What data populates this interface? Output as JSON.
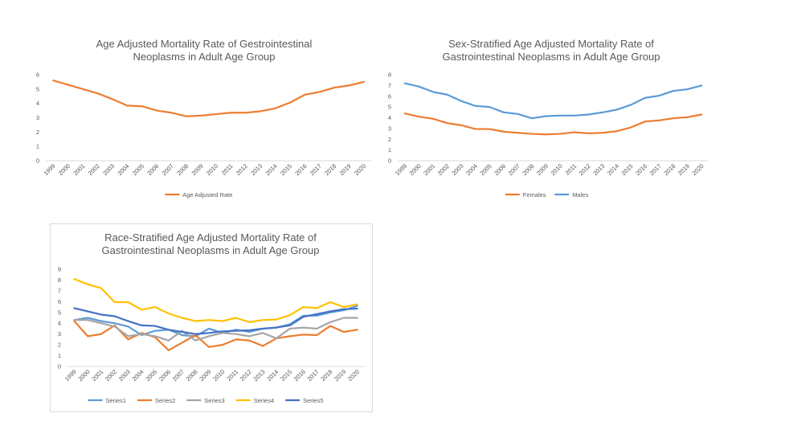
{
  "chart_data": [
    {
      "type": "line",
      "title_lines": [
        "Age Adjusted Mortality Rate of Gestrointestinal",
        "Neoplasms in Adult Age Group"
      ],
      "categories": [
        "1999",
        "2000",
        "2001",
        "2002",
        "2003",
        "2004",
        "2005",
        "2006",
        "2007",
        "2008",
        "2009",
        "2010",
        "2011",
        "2012",
        "2013",
        "2014",
        "2015",
        "2016",
        "2017",
        "2018",
        "2019",
        "2020"
      ],
      "ylim": [
        0,
        6
      ],
      "yticks": [
        0,
        1,
        2,
        3,
        4,
        5,
        6
      ],
      "grid": false,
      "legend_position": "bottom",
      "series": [
        {
          "name": "Age Adjusted Rate",
          "color": "#ED7D31",
          "values": [
            5.6,
            5.3,
            5.0,
            4.7,
            4.3,
            3.85,
            3.8,
            3.5,
            3.35,
            3.1,
            3.15,
            3.25,
            3.35,
            3.35,
            3.45,
            3.65,
            4.05,
            4.6,
            4.8,
            5.1,
            5.25,
            5.5
          ]
        }
      ]
    },
    {
      "type": "line",
      "title_lines": [
        "Sex-Stratified Age Adjusted Mortality Rate of",
        "Gastrointestinal Neoplasms in Adult Age Group"
      ],
      "categories": [
        "1999",
        "2000",
        "2001",
        "2002",
        "2003",
        "2004",
        "2005",
        "2006",
        "2007",
        "2008",
        "2009",
        "2010",
        "2011",
        "2012",
        "2013",
        "2014",
        "2015",
        "2016",
        "2017",
        "2018",
        "2019",
        "2020"
      ],
      "ylim": [
        0,
        8
      ],
      "yticks": [
        0,
        1,
        2,
        3,
        4,
        5,
        6,
        7,
        8
      ],
      "grid": false,
      "legend_position": "bottom",
      "series": [
        {
          "name": "Females",
          "color": "#ED7D31",
          "values": [
            4.4,
            4.1,
            3.9,
            3.5,
            3.3,
            2.95,
            2.95,
            2.7,
            2.6,
            2.5,
            2.45,
            2.5,
            2.65,
            2.55,
            2.6,
            2.75,
            3.1,
            3.65,
            3.75,
            3.95,
            4.05,
            4.3
          ]
        },
        {
          "name": "Males",
          "color": "#5B9BD5",
          "values": [
            7.2,
            6.9,
            6.4,
            6.15,
            5.55,
            5.1,
            5.0,
            4.5,
            4.35,
            3.95,
            4.15,
            4.2,
            4.2,
            4.3,
            4.5,
            4.75,
            5.2,
            5.85,
            6.05,
            6.5,
            6.65,
            7.0
          ]
        }
      ]
    },
    {
      "type": "line",
      "title_lines": [
        "Race-Stratified Age Adjusted Mortality Rate of",
        "Gastrointestinal Neoplasms in Adult Age Group"
      ],
      "categories": [
        "1999",
        "2000",
        "2001",
        "2002",
        "2003",
        "2004",
        "2005",
        "2006",
        "2007",
        "2008",
        "2009",
        "2010",
        "2011",
        "2012",
        "2013",
        "2014",
        "2015",
        "2016",
        "2017",
        "2018",
        "2019",
        "2020"
      ],
      "ylim": [
        0,
        9
      ],
      "yticks": [
        0,
        1,
        2,
        3,
        4,
        5,
        6,
        7,
        8,
        9
      ],
      "grid": false,
      "legend_position": "bottom",
      "series": [
        {
          "name": "Series1",
          "color": "#5B9BD5",
          "values": [
            4.3,
            4.5,
            4.2,
            4.0,
            3.7,
            2.9,
            3.3,
            3.4,
            2.9,
            2.8,
            3.5,
            3.1,
            3.4,
            3.2,
            3.5,
            3.6,
            3.9,
            4.7,
            4.7,
            5.0,
            5.2,
            5.6
          ]
        },
        {
          "name": "Series2",
          "color": "#ED7D31",
          "values": [
            4.2,
            2.8,
            3.0,
            3.8,
            2.5,
            3.1,
            2.7,
            1.5,
            2.2,
            2.9,
            1.8,
            2.0,
            2.5,
            2.4,
            1.9,
            2.6,
            2.8,
            2.95,
            2.9,
            3.75,
            3.2,
            3.4
          ]
        },
        {
          "name": "Series3",
          "color": "#A5A5A5",
          "values": [
            4.3,
            4.3,
            4.0,
            3.7,
            2.8,
            3.0,
            2.8,
            2.4,
            3.3,
            2.4,
            2.8,
            3.1,
            3.0,
            2.8,
            3.1,
            2.6,
            3.5,
            3.6,
            3.5,
            4.1,
            4.5,
            4.5
          ]
        },
        {
          "name": "Series4",
          "color": "#FFC000",
          "values": [
            8.1,
            7.6,
            7.25,
            5.95,
            5.95,
            5.25,
            5.5,
            4.9,
            4.5,
            4.2,
            4.3,
            4.2,
            4.5,
            4.1,
            4.3,
            4.35,
            4.75,
            5.5,
            5.4,
            5.95,
            5.5,
            5.75
          ]
        },
        {
          "name": "Series5",
          "color": "#4472C4",
          "values": [
            5.4,
            5.1,
            4.8,
            4.65,
            4.2,
            3.8,
            3.75,
            3.4,
            3.2,
            3.0,
            3.1,
            3.25,
            3.3,
            3.35,
            3.5,
            3.6,
            3.8,
            4.6,
            4.85,
            5.1,
            5.3,
            5.35
          ]
        }
      ]
    }
  ]
}
